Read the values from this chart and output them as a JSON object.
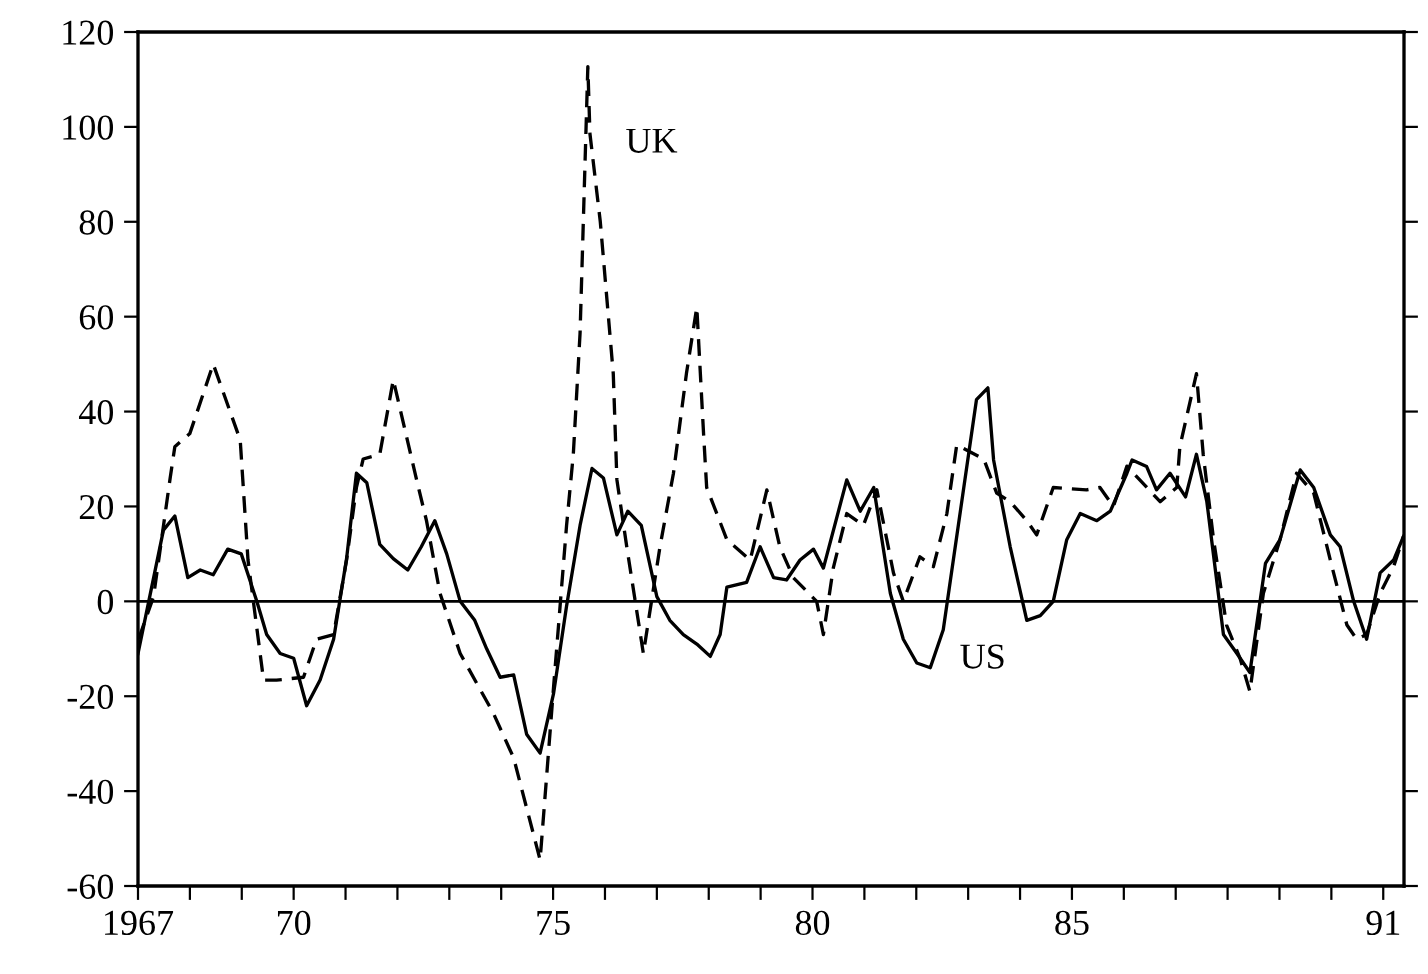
{
  "chart_data": {
    "type": "line",
    "xlim": [
      1967,
      1991.4
    ],
    "ylim": [
      -60,
      120
    ],
    "yticks": [
      -60,
      -40,
      -20,
      0,
      20,
      40,
      60,
      80,
      100,
      120
    ],
    "xticks": [
      {
        "value": 1967,
        "label": "1967"
      },
      {
        "value": 1968,
        "label": null
      },
      {
        "value": 1969,
        "label": null
      },
      {
        "value": 1970,
        "label": "70"
      },
      {
        "value": 1971,
        "label": null
      },
      {
        "value": 1972,
        "label": null
      },
      {
        "value": 1973,
        "label": null
      },
      {
        "value": 1974,
        "label": null
      },
      {
        "value": 1975,
        "label": "75"
      },
      {
        "value": 1976,
        "label": null
      },
      {
        "value": 1977,
        "label": null
      },
      {
        "value": 1978,
        "label": null
      },
      {
        "value": 1979,
        "label": null
      },
      {
        "value": 1980,
        "label": "80"
      },
      {
        "value": 1981,
        "label": null
      },
      {
        "value": 1982,
        "label": null
      },
      {
        "value": 1983,
        "label": null
      },
      {
        "value": 1984,
        "label": null
      },
      {
        "value": 1985,
        "label": "85"
      },
      {
        "value": 1986,
        "label": null
      },
      {
        "value": 1987,
        "label": null
      },
      {
        "value": 1988,
        "label": null
      },
      {
        "value": 1989,
        "label": null
      },
      {
        "value": 1990,
        "label": null
      },
      {
        "value": 1991,
        "label": "91"
      }
    ],
    "grid": false,
    "legend": false,
    "ref_lines": [
      {
        "axis": "y",
        "value": 0,
        "color": "#000000",
        "line_style": "solid"
      }
    ],
    "annotations": [
      "UK",
      "US"
    ],
    "series": [
      {
        "color": "#000000",
        "line_style": "solid",
        "x": [
          1967.0,
          1967.49,
          1967.71,
          1967.96,
          1968.2,
          1968.45,
          1968.73,
          1968.99,
          1969.29,
          1969.48,
          1969.74,
          1970.0,
          1970.25,
          1970.51,
          1970.77,
          1971.02,
          1971.21,
          1971.41,
          1971.66,
          1971.92,
          1972.2,
          1972.46,
          1972.72,
          1972.95,
          1973.21,
          1973.49,
          1973.72,
          1973.98,
          1974.24,
          1974.49,
          1974.75,
          1975.01,
          1975.26,
          1975.52,
          1975.75,
          1975.97,
          1976.23,
          1976.44,
          1976.7,
          1977.0,
          1977.25,
          1977.51,
          1977.77,
          1978.03,
          1978.22,
          1978.35,
          1978.73,
          1978.99,
          1979.25,
          1979.5,
          1979.76,
          1980.02,
          1980.21,
          1980.66,
          1980.92,
          1981.18,
          1981.5,
          1981.75,
          1982.01,
          1982.27,
          1982.52,
          1983.16,
          1983.38,
          1983.49,
          1983.81,
          1984.13,
          1984.39,
          1984.64,
          1984.9,
          1985.16,
          1985.48,
          1985.74,
          1986.06,
          1986.16,
          1986.44,
          1986.63,
          1986.89,
          1987.19,
          1987.4,
          1987.6,
          1987.92,
          1988.18,
          1988.43,
          1988.73,
          1989.01,
          1989.4,
          1989.66,
          1989.98,
          1990.17,
          1990.43,
          1990.68,
          1990.94,
          1991.2,
          1991.39
        ],
        "values": [
          -11,
          15,
          18,
          5,
          6.6,
          5.6,
          11,
          10,
          0,
          -7,
          -11,
          -12,
          -22,
          -16.6,
          -8,
          9,
          27,
          25,
          12,
          9,
          6.6,
          11.5,
          17,
          10,
          0,
          -4,
          -10,
          -16,
          -15.5,
          -28,
          -32,
          -19.4,
          -1,
          16,
          28,
          26,
          14,
          19,
          16,
          1,
          -4,
          -7,
          -9,
          -11.6,
          -7,
          3,
          4,
          11.5,
          5,
          4.5,
          8.7,
          11,
          7,
          25.6,
          19,
          24,
          1.7,
          -8,
          -13,
          -14,
          -6,
          42.5,
          45,
          29.8,
          11.5,
          -4,
          -3,
          0,
          13,
          18.5,
          17,
          19,
          27,
          29.8,
          28.4,
          23.5,
          27,
          22,
          31,
          21,
          -7,
          -11,
          -15,
          8,
          13,
          27.7,
          24,
          14,
          11.5,
          0,
          -8,
          6,
          8.7,
          13.7
        ]
      },
      {
        "color": "#000000",
        "line_style": "dashed",
        "x": [
          1967.01,
          1967.3,
          1967.62,
          1967.71,
          1968.0,
          1968.45,
          1968.97,
          1969.12,
          1969.42,
          1969.67,
          1970.19,
          1970.44,
          1970.77,
          1971.02,
          1971.21,
          1971.34,
          1971.66,
          1971.92,
          1972.37,
          1972.56,
          1972.82,
          1973.21,
          1973.85,
          1974.24,
          1974.75,
          1975.01,
          1975.26,
          1975.39,
          1975.52,
          1975.67,
          1975.71,
          1975.91,
          1976.16,
          1976.23,
          1976.42,
          1976.74,
          1977.06,
          1977.32,
          1977.57,
          1977.77,
          1977.9,
          1977.96,
          1978.35,
          1978.8,
          1979.12,
          1979.37,
          1979.63,
          1980.08,
          1980.21,
          1980.4,
          1980.66,
          1980.98,
          1981.24,
          1981.56,
          1981.75,
          1982.07,
          1982.33,
          1982.59,
          1982.78,
          1983.3,
          1983.55,
          1983.81,
          1984.13,
          1984.32,
          1984.64,
          1985.28,
          1985.54,
          1985.8,
          1986.06,
          1986.7,
          1987.02,
          1987.08,
          1987.4,
          1987.53,
          1987.73,
          1987.98,
          1988.24,
          1988.43,
          1988.69,
          1989.01,
          1989.33,
          1989.66,
          1989.98,
          1990.3,
          1990.49,
          1990.68,
          1990.94,
          1991.2,
          1991.39
        ],
        "values": [
          -8,
          1,
          26,
          32.6,
          35.4,
          50,
          34,
          8.7,
          -16.6,
          -16.6,
          -16,
          -8,
          -7,
          8.7,
          24,
          30,
          31,
          46.7,
          25.6,
          17,
          1.7,
          -11,
          -23.6,
          -33,
          -54.5,
          -18,
          16,
          31,
          56.5,
          112.7,
          98.6,
          80,
          48,
          25.6,
          11.5,
          -11,
          11.5,
          27,
          48,
          62,
          35.4,
          24,
          13,
          8.7,
          23.5,
          11.5,
          5,
          0,
          -7,
          7,
          18.5,
          16,
          23.5,
          6,
          0,
          9.4,
          7.3,
          18.5,
          33,
          30,
          22.8,
          21,
          17,
          14,
          24,
          23.5,
          24,
          20,
          28.5,
          21,
          24,
          32.6,
          48,
          31,
          13,
          -5,
          -12,
          -19,
          1.7,
          13,
          27,
          22.8,
          8.7,
          -5,
          -8,
          -7,
          1.7,
          7.3,
          13.7
        ]
      }
    ]
  }
}
